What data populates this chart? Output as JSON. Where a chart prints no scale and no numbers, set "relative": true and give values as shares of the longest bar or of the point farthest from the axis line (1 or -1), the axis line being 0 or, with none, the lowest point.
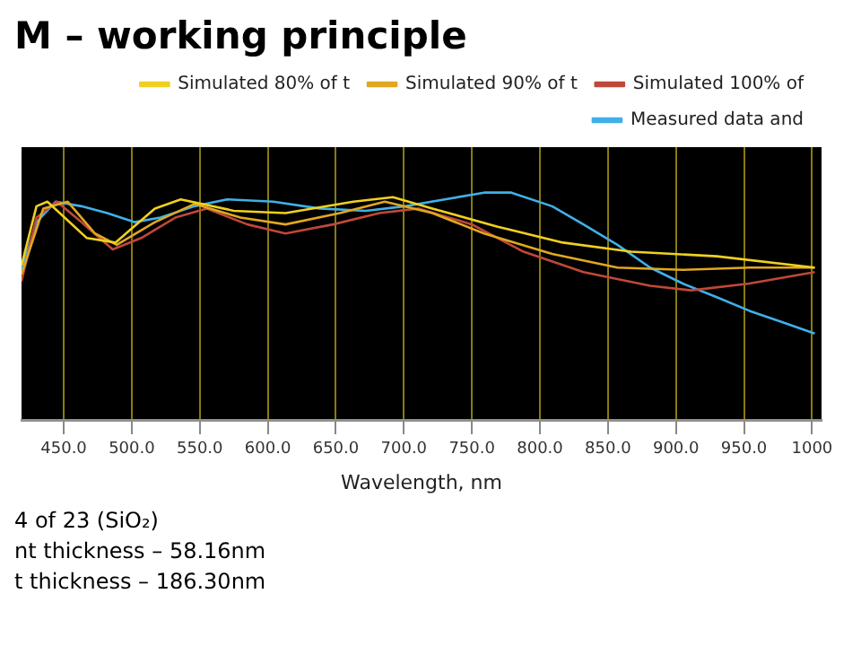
{
  "chart_data": {
    "type": "line",
    "title": "M – working principle",
    "xlabel": "Wavelength, nm",
    "relative": true,
    "xlim": [
      419,
      1007
    ],
    "xticks": [
      {
        "value": 450,
        "label": "450.0"
      },
      {
        "value": 500,
        "label": "500.0"
      },
      {
        "value": 550,
        "label": "550.0"
      },
      {
        "value": 600,
        "label": "600.0"
      },
      {
        "value": 650,
        "label": "650.0"
      },
      {
        "value": 700,
        "label": "700.0"
      },
      {
        "value": 750,
        "label": "750.0"
      },
      {
        "value": 800,
        "label": "800.0"
      },
      {
        "value": 850,
        "label": "850.0"
      },
      {
        "value": 900,
        "label": "900.0"
      },
      {
        "value": 950,
        "label": "950.0"
      },
      1000
    ],
    "grid": "x",
    "legend": "top right",
    "marker": "none",
    "line_style": "solid",
    "series": [
      {
        "name": "Simulated 80% of t",
        "color": "#f0d020",
        "x": [
          419,
          430,
          438,
          467,
          488,
          517,
          536,
          575,
          613,
          663,
          692,
          721,
          769,
          817,
          867,
          930,
          1002
        ],
        "values": [
          0.68,
          0.94,
          0.96,
          0.8,
          0.78,
          0.93,
          0.97,
          0.92,
          0.91,
          0.96,
          0.98,
          0.93,
          0.85,
          0.78,
          0.74,
          0.72,
          0.67
        ]
      },
      {
        "name": "Simulated 90% of t",
        "color": "#e0a820",
        "x": [
          419,
          435,
          453,
          473,
          489,
          517,
          546,
          580,
          613,
          653,
          686,
          721,
          759,
          809,
          857,
          905,
          954,
          1002
        ],
        "values": [
          0.64,
          0.93,
          0.96,
          0.82,
          0.77,
          0.87,
          0.95,
          0.89,
          0.86,
          0.91,
          0.96,
          0.91,
          0.82,
          0.73,
          0.67,
          0.66,
          0.67,
          0.67
        ]
      },
      {
        "name": "Simulated 100% of",
        "color": "#c04838",
        "x": [
          419,
          430,
          445,
          463,
          486,
          507,
          532,
          555,
          585,
          613,
          648,
          682,
          711,
          750,
          788,
          832,
          881,
          911,
          954,
          1002
        ],
        "values": [
          0.61,
          0.89,
          0.96,
          0.87,
          0.75,
          0.8,
          0.89,
          0.93,
          0.86,
          0.82,
          0.86,
          0.91,
          0.93,
          0.86,
          0.74,
          0.65,
          0.59,
          0.57,
          0.6,
          0.65
        ]
      },
      {
        "name": "Measured data and",
        "color": "#40b0e8",
        "x": [
          419,
          430,
          444,
          463,
          482,
          502,
          521,
          546,
          570,
          604,
          638,
          672,
          701,
          730,
          759,
          779,
          809,
          832,
          857,
          881,
          905,
          930,
          954,
          978,
          1002
        ],
        "values": [
          0.66,
          0.87,
          0.96,
          0.94,
          0.91,
          0.87,
          0.89,
          0.94,
          0.97,
          0.96,
          0.93,
          0.92,
          0.94,
          0.97,
          1,
          1,
          0.94,
          0.86,
          0.77,
          0.67,
          0.6,
          0.54,
          0.48,
          0.43,
          0.38
        ]
      }
    ],
    "annotations": [
      "4 of 23 (SiO₂)",
      "nt thickness – 58.16nm",
      "t thickness – 186.30nm"
    ]
  }
}
